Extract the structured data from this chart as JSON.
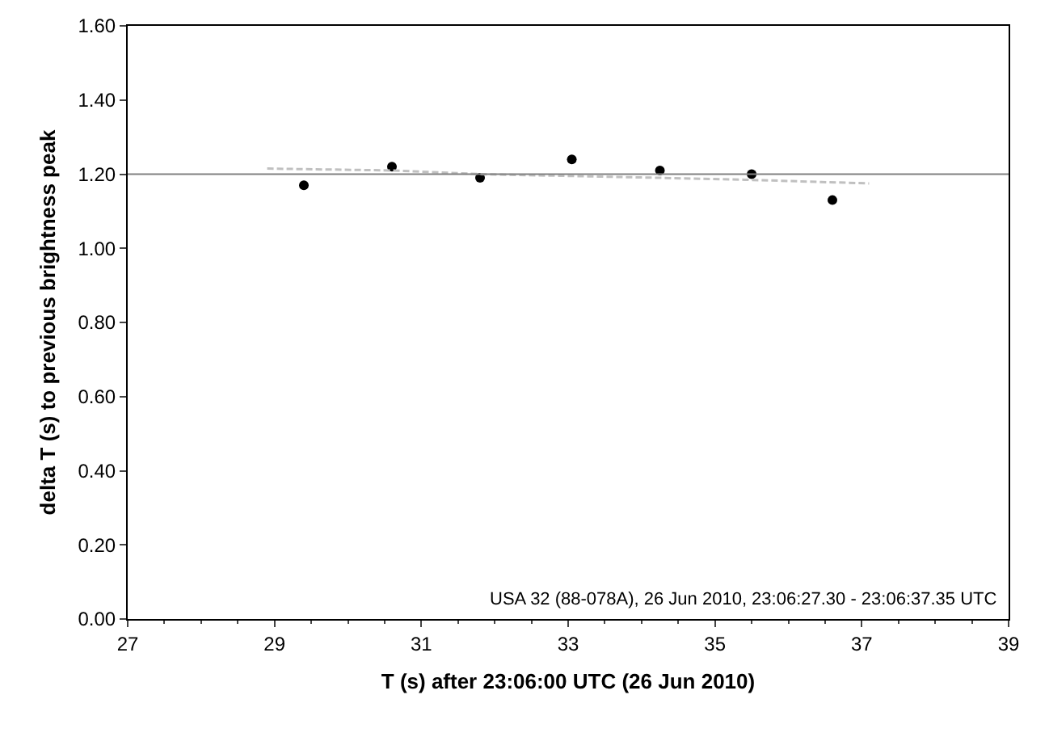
{
  "chart_data": {
    "type": "scatter",
    "xlabel": "T (s) after 23:06:00 UTC (26 Jun 2010)",
    "ylabel": "delta T (s) to previous brightness peak",
    "x": [
      29.4,
      30.6,
      31.8,
      33.05,
      34.25,
      35.5,
      36.6
    ],
    "series": [
      {
        "color": "#000000",
        "marker": "circle",
        "values": [
          1.17,
          1.22,
          1.19,
          1.24,
          1.21,
          1.2,
          1.13
        ]
      },
      {
        "type": "line",
        "color": "#c0c0c0",
        "line_style": "dashed",
        "x": [
          28.9,
          30.6,
          31.8,
          33.05,
          34.25,
          35.4,
          37.1
        ],
        "values": [
          1.215,
          1.21,
          1.2,
          1.195,
          1.19,
          1.185,
          1.175
        ]
      }
    ],
    "xlim": [
      27,
      39
    ],
    "xticks": [
      27,
      29,
      31,
      33,
      35,
      37,
      39
    ],
    "ylim": [
      0,
      1.6
    ],
    "yticks": [
      {
        "value": 0,
        "label": "0.00"
      },
      {
        "value": 0.2,
        "label": "0.20"
      },
      {
        "value": 0.4,
        "label": "0.40"
      },
      {
        "value": 0.6,
        "label": "0.60"
      },
      {
        "value": 0.8,
        "label": "0.80"
      },
      {
        "value": 1,
        "label": "1.00"
      },
      {
        "value": 1.2,
        "label": "1.20"
      },
      {
        "value": 1.4,
        "label": "1.40"
      },
      {
        "value": 1.6,
        "label": "1.60"
      }
    ],
    "ref_lines": [
      {
        "axis": "y",
        "value": 1.2,
        "color": "#808080"
      }
    ],
    "annotations": [
      "USA 32 (88-078A), 26 Jun 2010, 23:06:27.30 - 23:06:37.35 UTC"
    ],
    "grid": false
  }
}
